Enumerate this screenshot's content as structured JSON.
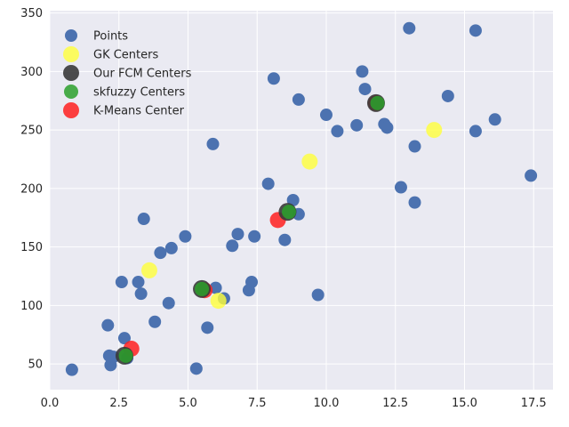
{
  "chart_data": {
    "type": "scatter",
    "xlim": [
      0.0,
      18.2
    ],
    "ylim": [
      28,
      352
    ],
    "x_ticks": [
      0.0,
      2.5,
      5.0,
      7.5,
      10.0,
      12.5,
      15.0,
      17.5
    ],
    "x_tick_labels": [
      "0.0",
      "2.5",
      "5.0",
      "7.5",
      "10.0",
      "12.5",
      "15.0",
      "17.5"
    ],
    "y_ticks": [
      50,
      100,
      150,
      200,
      250,
      300,
      350
    ],
    "y_tick_labels": [
      "50",
      "100",
      "150",
      "200",
      "250",
      "300",
      "350"
    ],
    "grid": true,
    "background": "#eaeaf2",
    "legend_position": "upper-left",
    "series": [
      {
        "name": "Points",
        "color": "#4c72b0",
        "points": [
          [
            0.8,
            45
          ],
          [
            2.1,
            83
          ],
          [
            2.15,
            57
          ],
          [
            2.2,
            49
          ],
          [
            2.3,
            56
          ],
          [
            2.6,
            120
          ],
          [
            2.7,
            72
          ],
          [
            2.8,
            55
          ],
          [
            3.2,
            120
          ],
          [
            3.3,
            110
          ],
          [
            3.4,
            174
          ],
          [
            3.8,
            86
          ],
          [
            4.0,
            145
          ],
          [
            4.3,
            102
          ],
          [
            4.4,
            149
          ],
          [
            4.9,
            159
          ],
          [
            5.3,
            46
          ],
          [
            5.7,
            81
          ],
          [
            5.9,
            238
          ],
          [
            6.0,
            115
          ],
          [
            6.3,
            106
          ],
          [
            6.6,
            151
          ],
          [
            6.8,
            161
          ],
          [
            7.2,
            113
          ],
          [
            7.3,
            120
          ],
          [
            7.4,
            159
          ],
          [
            7.9,
            204
          ],
          [
            8.1,
            294
          ],
          [
            8.5,
            156
          ],
          [
            8.8,
            190
          ],
          [
            9.0,
            178
          ],
          [
            9.0,
            276
          ],
          [
            9.7,
            109
          ],
          [
            10.0,
            263
          ],
          [
            10.4,
            249
          ],
          [
            11.1,
            254
          ],
          [
            11.3,
            300
          ],
          [
            11.4,
            285
          ],
          [
            12.1,
            255
          ],
          [
            12.2,
            252
          ],
          [
            12.7,
            201
          ],
          [
            13.0,
            337
          ],
          [
            13.2,
            236
          ],
          [
            13.2,
            188
          ],
          [
            14.4,
            279
          ],
          [
            15.4,
            335
          ],
          [
            15.4,
            249
          ],
          [
            16.1,
            259
          ],
          [
            17.4,
            211
          ]
        ]
      },
      {
        "name": "GK Centers",
        "color": "#ffff3a",
        "points": [
          [
            3.6,
            130
          ],
          [
            6.1,
            104
          ],
          [
            9.4,
            223
          ],
          [
            13.9,
            250
          ]
        ]
      },
      {
        "name": "Our FCM Centers",
        "color": "#3a3a3a",
        "points": [
          [
            2.7,
            57
          ],
          [
            5.5,
            114
          ],
          [
            8.6,
            180
          ],
          [
            11.8,
            273
          ]
        ]
      },
      {
        "name": "skfuzzy Centers",
        "color": "#2ca02c",
        "points": [
          [
            2.75,
            57
          ],
          [
            5.5,
            114
          ],
          [
            8.65,
            180
          ],
          [
            11.85,
            273
          ]
        ]
      },
      {
        "name": "K-Means Center",
        "color": "#ff2020",
        "points": [
          [
            2.95,
            63
          ],
          [
            5.6,
            113
          ],
          [
            8.25,
            173
          ],
          [
            11.8,
            273
          ]
        ]
      }
    ]
  }
}
